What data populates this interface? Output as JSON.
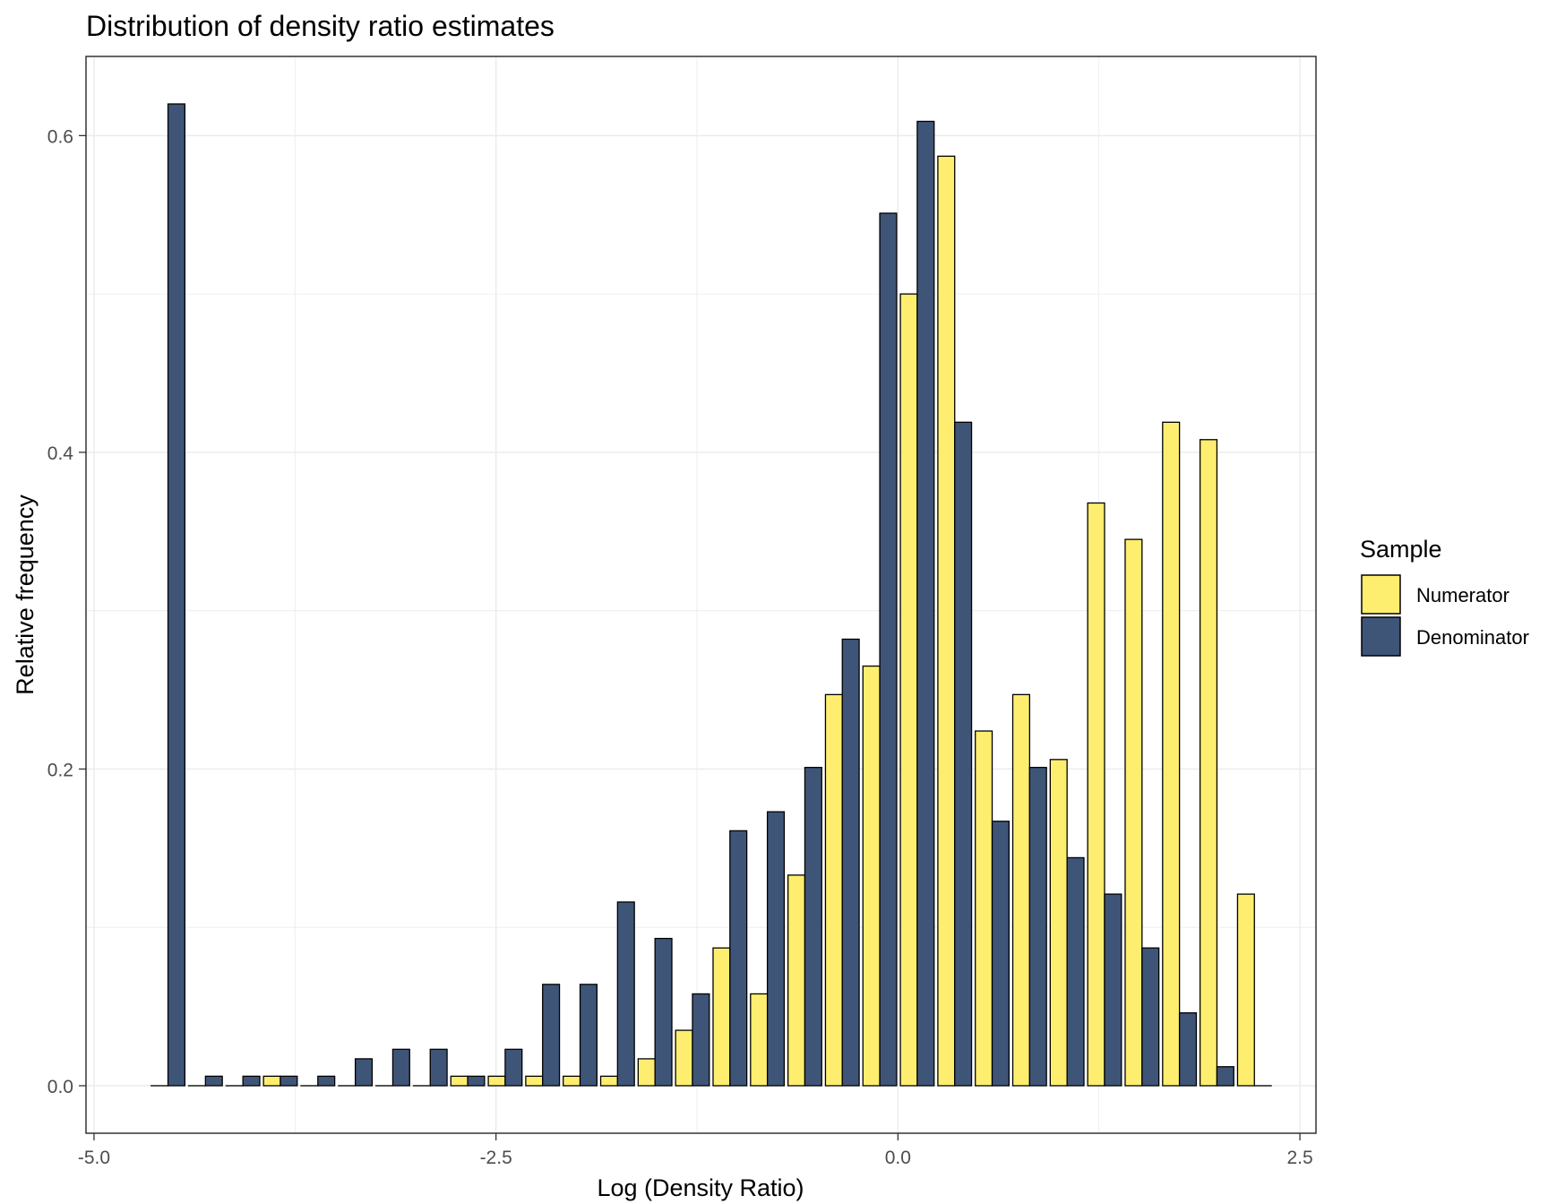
{
  "chart_data": {
    "type": "bar",
    "title": "Distribution of density ratio estimates",
    "xlabel": "Log (Density Ratio)",
    "ylabel": "Relative frequency",
    "xlim": [
      -5.05,
      2.6
    ],
    "ylim": [
      -0.03,
      0.65
    ],
    "xticks": [
      -5.0,
      -2.5,
      0.0,
      2.5
    ],
    "xtick_labels": [
      "-5.0",
      "-2.5",
      "0.0",
      "2.5"
    ],
    "yticks": [
      0.0,
      0.2,
      0.4,
      0.6
    ],
    "ytick_labels": [
      "0.0",
      "0.2",
      "0.4",
      "0.6"
    ],
    "grid": true,
    "legend_position": "right",
    "legend_title": "Sample",
    "bin_width": 0.233,
    "x": [
      -4.54,
      -4.307,
      -4.074,
      -3.841,
      -3.608,
      -3.375,
      -3.142,
      -2.909,
      -2.676,
      -2.443,
      -2.21,
      -1.977,
      -1.744,
      -1.511,
      -1.278,
      -1.045,
      -0.812,
      -0.579,
      -0.346,
      -0.113,
      0.12,
      0.353,
      0.586,
      0.819,
      1.052,
      1.285,
      1.518,
      1.751,
      1.984,
      2.217
    ],
    "series": [
      {
        "name": "Numerator",
        "color": "#fdee6f",
        "values": [
          0.0,
          0.0,
          0.0,
          0.006,
          0.0,
          0.0,
          0.0,
          0.0,
          0.006,
          0.006,
          0.006,
          0.006,
          0.006,
          0.017,
          0.035,
          0.087,
          0.058,
          0.133,
          0.247,
          0.265,
          0.5,
          0.587,
          0.224,
          0.247,
          0.206,
          0.368,
          0.345,
          0.419,
          0.408,
          0.121
        ]
      },
      {
        "name": "Denominator",
        "color": "#3f5577",
        "values": [
          0.62,
          0.006,
          0.006,
          0.006,
          0.006,
          0.017,
          0.023,
          0.023,
          0.006,
          0.023,
          0.064,
          0.064,
          0.116,
          0.093,
          0.058,
          0.161,
          0.173,
          0.201,
          0.282,
          0.551,
          0.609,
          0.419,
          0.167,
          0.201,
          0.144,
          0.121,
          0.087,
          0.046,
          0.012,
          0.0
        ]
      }
    ]
  }
}
